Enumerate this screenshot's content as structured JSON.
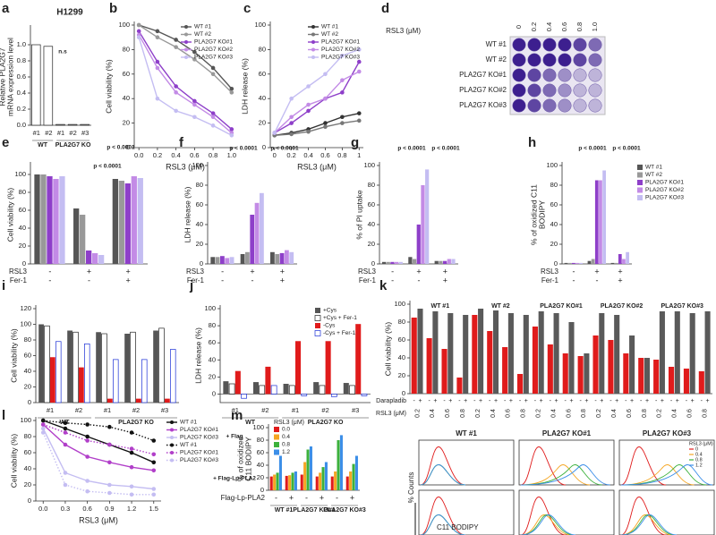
{
  "chart_data": [
    {
      "panel": "a",
      "type": "bar",
      "title": "H1299",
      "ylabel": [
        "Relative PLA2G7",
        "mRNA expression level"
      ],
      "categories": [
        "#1",
        "#2",
        "#1",
        "#2",
        "#3"
      ],
      "groups": [
        "WT",
        "PLA2G7 KO"
      ],
      "values": [
        1,
        0.98,
        0.01,
        0.01,
        0.01
      ],
      "color": "#ffffff",
      "ylim": [
        0,
        1.2
      ],
      "yticks": [
        {
          "value": 0,
          "label": "0.0"
        },
        0.2,
        0.4,
        0.6,
        0.8,
        {
          "value": 1,
          "label": "1.0"
        }
      ],
      "annotations": [
        "n.s"
      ]
    },
    {
      "panel": "b",
      "type": "line",
      "xlabel": "RSL3 (μM)",
      "ylabel": "Cell viability (%)",
      "x": [
        0,
        0.2,
        0.4,
        0.6,
        0.8,
        1
      ],
      "xlim": [
        -0.05,
        1.05
      ],
      "xticks": [
        {
          "value": 0,
          "label": "0.0"
        },
        0.2,
        0.4,
        0.6,
        0.8,
        {
          "value": 1,
          "label": "1.0"
        }
      ],
      "ylim": [
        0,
        100
      ],
      "yticks": [
        0,
        20,
        40,
        60,
        80,
        100
      ],
      "legend": "upper right",
      "series": [
        {
          "name": "WT #1",
          "color": "#555555",
          "values": [
            100,
            95,
            88,
            78,
            65,
            48
          ]
        },
        {
          "name": "WT #2",
          "color": "#999999",
          "values": [
            100,
            90,
            82,
            72,
            60,
            45
          ]
        },
        {
          "name": "PLA2G7 KO#1",
          "color": "#8e3fc9",
          "values": [
            95,
            70,
            50,
            38,
            28,
            15
          ]
        },
        {
          "name": "PLA2G7 KO#2",
          "color": "#c38be6",
          "values": [
            92,
            65,
            45,
            35,
            25,
            12
          ]
        },
        {
          "name": "PLA2G7 KO#3",
          "color": "#c4bdf2",
          "values": [
            90,
            40,
            30,
            25,
            18,
            10
          ]
        }
      ]
    },
    {
      "panel": "c",
      "type": "line",
      "xlabel": "RSL3 (μM)",
      "ylabel": "LDH release (%)",
      "x": [
        0,
        0.2,
        0.4,
        0.6,
        0.8,
        1
      ],
      "xlim": [
        -0.05,
        1.05
      ],
      "xticks": [
        0,
        0.2,
        0.4,
        0.6,
        0.8,
        1
      ],
      "ylim": [
        0,
        100
      ],
      "yticks": [
        0,
        20,
        40,
        60,
        80,
        100
      ],
      "legend": "upper right",
      "series": [
        {
          "name": "WT #1",
          "color": "#333333",
          "values": [
            10,
            12,
            15,
            20,
            25,
            28
          ]
        },
        {
          "name": "WT #2",
          "color": "#777777",
          "values": [
            10,
            11,
            13,
            17,
            20,
            22
          ]
        },
        {
          "name": "PLA2G7 KO#1",
          "color": "#8e3fc9",
          "values": [
            12,
            20,
            30,
            40,
            45,
            70
          ]
        },
        {
          "name": "PLA2G7 KO#2",
          "color": "#c38be6",
          "values": [
            12,
            25,
            35,
            40,
            55,
            62
          ]
        },
        {
          "name": "PLA2G7 KO#3",
          "color": "#c4bdf2",
          "values": [
            12,
            40,
            50,
            60,
            75,
            80
          ]
        }
      ]
    },
    {
      "panel": "d",
      "type": "plate",
      "title": "RSL3 (μM)",
      "columns": [
        0,
        0.2,
        0.4,
        0.6,
        0.8,
        {
          "value": 1,
          "label": "1.0"
        }
      ],
      "rows": [
        "WT #1",
        "WT #2",
        "PLA2G7 KO#1",
        "PLA2G7 KO#2",
        "PLA2G7 KO#3"
      ]
    },
    {
      "panel": "e",
      "type": "bar",
      "ylabel": "Cell viability (%)",
      "categories": [
        null,
        null,
        null
      ],
      "conditions": [
        {
          "name": "RSL3",
          "values": [
            "-",
            "+",
            "+"
          ]
        },
        {
          "name": "Fer-1",
          "values": [
            "-",
            "-",
            "+"
          ]
        }
      ],
      "ylim": [
        0,
        110
      ],
      "yticks": [
        0,
        20,
        40,
        60,
        80,
        100
      ],
      "annotations": [
        "p < 0.0001",
        "p < 0.0001"
      ],
      "series": [
        {
          "color": "#555555",
          "values": [
            100,
            62,
            95
          ]
        },
        {
          "color": "#999999",
          "values": [
            100,
            55,
            93
          ]
        },
        {
          "color": "#8e3fc9",
          "values": [
            98,
            15,
            90
          ]
        },
        {
          "color": "#c38be6",
          "values": [
            95,
            12,
            98
          ]
        },
        {
          "color": "#c4bdf2",
          "values": [
            98,
            10,
            96
          ]
        }
      ]
    },
    {
      "panel": "f",
      "type": "bar",
      "ylabel": "LDH release (%)",
      "categories": [
        null,
        null,
        null
      ],
      "conditions": [
        {
          "name": "RSL3",
          "values": [
            "-",
            "+",
            "+"
          ]
        },
        {
          "name": "Fer-1",
          "values": [
            "-",
            "-",
            "+"
          ]
        }
      ],
      "ylim": [
        0,
        100
      ],
      "yticks": [
        0,
        20,
        40,
        60,
        80,
        100
      ],
      "annotations": [
        "p < 0.0001",
        "p < 0.0001"
      ],
      "series": [
        {
          "color": "#555555",
          "values": [
            7,
            10,
            12
          ]
        },
        {
          "color": "#999999",
          "values": [
            7,
            12,
            10
          ]
        },
        {
          "color": "#8e3fc9",
          "values": [
            8,
            50,
            11
          ]
        },
        {
          "color": "#c38be6",
          "values": [
            6,
            62,
            14
          ]
        },
        {
          "color": "#c4bdf2",
          "values": [
            7,
            72,
            12
          ]
        }
      ]
    },
    {
      "panel": "g",
      "type": "bar",
      "ylabel": "% of PI uptake",
      "categories": [
        null,
        null,
        null
      ],
      "conditions": [
        {
          "name": "RSL3",
          "values": [
            "-",
            "+",
            "+"
          ]
        },
        {
          "name": "Fer-1",
          "values": [
            "-",
            "-",
            "+"
          ]
        }
      ],
      "ylim": [
        0,
        100
      ],
      "yticks": [
        0,
        20,
        40,
        60,
        80,
        100
      ],
      "annotations": [
        "p < 0.0001",
        "p < 0.0001"
      ],
      "series": [
        {
          "color": "#555555",
          "values": [
            2,
            7,
            3
          ]
        },
        {
          "color": "#999999",
          "values": [
            2,
            5,
            3
          ]
        },
        {
          "color": "#8e3fc9",
          "values": [
            2,
            40,
            3
          ]
        },
        {
          "color": "#c38be6",
          "values": [
            2,
            80,
            5
          ]
        },
        {
          "color": "#c4bdf2",
          "values": [
            2,
            96,
            5
          ]
        }
      ]
    },
    {
      "panel": "h",
      "type": "bar",
      "ylabel": [
        "% of oxidized C11",
        "BODIPY"
      ],
      "categories": [
        null,
        null,
        null
      ],
      "conditions": [
        {
          "name": "RSL3",
          "values": [
            "-",
            "+",
            "+"
          ]
        },
        {
          "name": "Fer-1",
          "values": [
            "-",
            "-",
            "+"
          ]
        }
      ],
      "ylim": [
        0,
        100
      ],
      "yticks": [
        0,
        20,
        40,
        60,
        80,
        100
      ],
      "legend": "outside right",
      "annotations": [
        "p < 0.0001",
        "p < 0.0001"
      ],
      "series": [
        {
          "name": "WT #1",
          "color": "#555555",
          "values": [
            1,
            3,
            1
          ]
        },
        {
          "name": "WT #2",
          "color": "#999999",
          "values": [
            1,
            5,
            1
          ]
        },
        {
          "name": "PLA2G7 KO#1",
          "color": "#8e3fc9",
          "values": [
            1,
            85,
            10
          ]
        },
        {
          "name": "PLA2G7 KO#2",
          "color": "#c38be6",
          "values": [
            1,
            85,
            5
          ]
        },
        {
          "name": "PLA2G7 KO#3",
          "color": "#c4bdf2",
          "values": [
            1,
            95,
            12
          ]
        }
      ]
    },
    {
      "panel": "i",
      "type": "bar",
      "ylabel": "Cell viability (%)",
      "categories": [
        "#1",
        "#2",
        "#1",
        "#2",
        "#3"
      ],
      "groups": [
        "WT",
        "PLA2G7 KO"
      ],
      "ylim": [
        0,
        120
      ],
      "yticks": [
        0,
        20,
        40,
        60,
        80,
        100,
        120
      ],
      "series": [
        {
          "color": "#555555",
          "values": [
            100,
            92,
            90,
            88,
            92
          ]
        },
        {
          "color": "#ffffff",
          "stroke": "#222222",
          "values": [
            98,
            90,
            88,
            90,
            95
          ]
        },
        {
          "color": "#e01b1b",
          "values": [
            58,
            45,
            5,
            5,
            5
          ]
        },
        {
          "color": "#ffffff",
          "stroke": "#1a2fd6",
          "values": [
            78,
            75,
            55,
            55,
            68
          ]
        }
      ]
    },
    {
      "panel": "j",
      "type": "bar",
      "ylabel": "LDH release (%)",
      "categories": [
        "#1",
        "#2",
        "#1",
        "#2",
        "#3"
      ],
      "groups": [
        "WT",
        "PLA2G7 KO"
      ],
      "ylim": [
        -10,
        100
      ],
      "yticks": [
        0,
        20,
        40,
        60,
        80,
        100
      ],
      "legend": "upper right",
      "series": [
        {
          "name": "+Cys",
          "color": "#555555",
          "values": [
            15,
            14,
            12,
            14,
            13
          ]
        },
        {
          "name": "+Cys + Fer-1",
          "color": "#ffffff",
          "stroke": "#222222",
          "values": [
            12,
            10,
            10,
            10,
            10
          ]
        },
        {
          "name": "-Cys",
          "color": "#e01b1b",
          "values": [
            27,
            32,
            62,
            62,
            82
          ]
        },
        {
          "name": "-Cys + Fer-1",
          "color": "#ffffff",
          "stroke": "#1a2fd6",
          "values": [
            -5,
            10,
            -2,
            -3,
            -2
          ]
        }
      ]
    },
    {
      "panel": "k",
      "type": "bar",
      "ylabel": "Cell viability (%)",
      "xlabel": "RSL3 (μM)",
      "categories": [
        "0.2",
        "0.4",
        "0.6",
        "0.8",
        "0.2",
        "0.4",
        "0.6",
        "0.8",
        "0.2",
        "0.4",
        "0.6",
        "0.8",
        "0.2",
        "0.4",
        "0.6",
        "0.8",
        "0.2",
        "0.4",
        "0.6",
        "0.8"
      ],
      "groups": [
        "WT #1",
        "WT #2",
        "PLA2G7 KO#1",
        "PLA2G7 KO#2",
        "PLA2G7 KO#3"
      ],
      "conditions": [
        {
          "name": "Darapladib",
          "values": [
            "-",
            "+"
          ]
        }
      ],
      "ylim": [
        0,
        100
      ],
      "yticks": [
        0,
        20,
        40,
        60,
        80,
        100
      ],
      "series": [
        {
          "color": "#e01b1b",
          "values": [
            85,
            62,
            50,
            18,
            88,
            70,
            52,
            22,
            75,
            55,
            45,
            42,
            65,
            60,
            45,
            40,
            38,
            30,
            28,
            25
          ]
        },
        {
          "color": "#5a5a5a",
          "values": [
            95,
            92,
            90,
            88,
            95,
            93,
            90,
            88,
            92,
            90,
            80,
            45,
            90,
            88,
            65,
            40,
            92,
            92,
            90,
            92
          ]
        }
      ]
    },
    {
      "panel": "l",
      "type": "line",
      "xlabel": "RSL3 (μM)",
      "ylabel": "Cell viability (%)",
      "x": [
        0,
        0.3,
        0.6,
        0.9,
        1.2,
        1.5
      ],
      "xlim": [
        -0.1,
        1.6
      ],
      "xticks": [
        {
          "value": 0,
          "label": "0.0"
        },
        0.3,
        0.6,
        0.9,
        1.2,
        1.5
      ],
      "ylim": [
        0,
        100
      ],
      "yticks": [
        0,
        20,
        40,
        60,
        80,
        100
      ],
      "legend": "outside right",
      "annotations": [
        "+ Flag",
        "+ Flag-Lp-PLA2"
      ],
      "series": [
        {
          "name": "WT #1",
          "color": "#111111",
          "style": "solid",
          "values": [
            100,
            90,
            80,
            70,
            60,
            48
          ]
        },
        {
          "name": "PLA2G7 KO#1",
          "color": "#b13fc9",
          "style": "solid",
          "values": [
            95,
            70,
            55,
            48,
            42,
            38
          ]
        },
        {
          "name": "PLA2G7 KO#3",
          "color": "#c4bdf2",
          "style": "solid",
          "values": [
            90,
            35,
            25,
            20,
            18,
            15
          ]
        },
        {
          "name": "WT #1",
          "color": "#111111",
          "style": "dotted",
          "values": [
            100,
            97,
            95,
            92,
            85,
            75
          ]
        },
        {
          "name": "PLA2G7 KO#1",
          "color": "#b13fc9",
          "style": "dotted",
          "values": [
            95,
            85,
            75,
            70,
            65,
            58
          ]
        },
        {
          "name": "PLA2G7 KO#3",
          "color": "#c4bdf2",
          "style": "dotted",
          "values": [
            85,
            20,
            12,
            10,
            8,
            8
          ]
        }
      ]
    },
    {
      "panel": "m",
      "type": "bar",
      "ylabel": [
        "% of oxidized",
        "C11 BODIPY"
      ],
      "legend_title": "RSL3 (μM)",
      "legend": "upper left",
      "categories": [
        null,
        null,
        null,
        null,
        null,
        null
      ],
      "groups": [
        "WT #1",
        "PLA2G7 KO#1",
        "PLA2G7 KO#3"
      ],
      "conditions": [
        {
          "name": "Flag-Lp-PLA2",
          "values": [
            "-",
            "+",
            "-",
            "+",
            "-",
            "+"
          ]
        }
      ],
      "ylim": [
        0,
        100
      ],
      "yticks": [
        0,
        20,
        40,
        60,
        80,
        100
      ],
      "series": [
        {
          "name": "0.0",
          "color": "#e01b1b",
          "values": [
            22,
            23,
            25,
            22,
            22,
            22
          ]
        },
        {
          "name": "0.4",
          "color": "#f5a623",
          "values": [
            25,
            24,
            45,
            28,
            30,
            30
          ]
        },
        {
          "name": "0.8",
          "color": "#3cb13c",
          "values": [
            28,
            28,
            65,
            37,
            80,
            42
          ]
        },
        {
          "name": "1.2",
          "color": "#3b8ee8",
          "values": [
            55,
            30,
            70,
            45,
            88,
            55
          ]
        }
      ]
    },
    {
      "type": "flow",
      "columns": [
        "WT #1",
        "PLA2G7 KO#1",
        "PLA2G7 KO#3"
      ],
      "rows": [
        "Flag",
        "Flag -Lp-PLA2"
      ],
      "ylabel": "% Counts",
      "xlabel": "C11 BODIPY",
      "legend_title": "RSL3 (μM)",
      "series": [
        {
          "name": "0",
          "color": "#e01b1b"
        },
        {
          "name": "0.4",
          "color": "#f5a623"
        },
        {
          "name": "0.8",
          "color": "#3cb13c"
        },
        {
          "name": "1.2",
          "color": "#3b8ee8"
        }
      ]
    }
  ]
}
